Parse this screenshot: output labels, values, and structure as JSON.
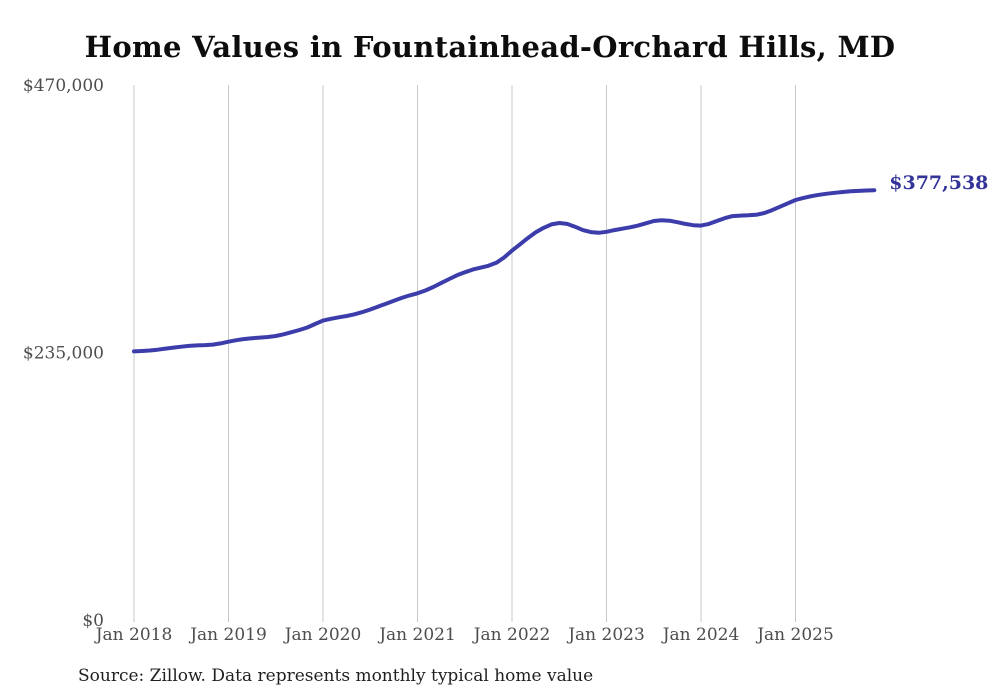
{
  "page": {
    "title": "Home Values in Fountainhead-Orchard Hills, MD",
    "source_note": "Source: Zillow. Data represents monthly typical home value",
    "end_value_label": "$377,538"
  },
  "colors": {
    "line": "#3c3caa",
    "end_label": "#333399",
    "gridline": "#c9c9c9",
    "tick_text": "#4d4d4d",
    "title_text": "#0d0d0d",
    "source_text": "#1f1f1f",
    "background": "#ffffff"
  },
  "chart_data": {
    "type": "line",
    "title": "Home Values in Fountainhead-Orchard Hills, MD",
    "xlabel": "",
    "ylabel": "",
    "ylim": [
      0,
      470000
    ],
    "grid": "vertical yearly gridlines only",
    "legend": "none",
    "series_name": "Monthly typical home value",
    "y_ticks": [
      0,
      235000,
      470000
    ],
    "y_tick_labels": [
      "$0",
      "$235,000",
      "$470,000"
    ],
    "x_tick_labels": [
      "Jan 2018",
      "Jan 2019",
      "Jan 2020",
      "Jan 2021",
      "Jan 2022",
      "Jan 2023",
      "Jan 2024",
      "Jan 2025"
    ],
    "end_value": 377538,
    "end_label": "$377,538",
    "x": [
      "Jan 2018",
      "Feb 2018",
      "Mar 2018",
      "Apr 2018",
      "May 2018",
      "Jun 2018",
      "Jul 2018",
      "Aug 2018",
      "Sep 2018",
      "Oct 2018",
      "Nov 2018",
      "Dec 2018",
      "Jan 2019",
      "Feb 2019",
      "Mar 2019",
      "Apr 2019",
      "May 2019",
      "Jun 2019",
      "Jul 2019",
      "Aug 2019",
      "Sep 2019",
      "Oct 2019",
      "Nov 2019",
      "Dec 2019",
      "Jan 2020",
      "Feb 2020",
      "Mar 2020",
      "Apr 2020",
      "May 2020",
      "Jun 2020",
      "Jul 2020",
      "Aug 2020",
      "Sep 2020",
      "Oct 2020",
      "Nov 2020",
      "Dec 2020",
      "Jan 2021",
      "Feb 2021",
      "Mar 2021",
      "Apr 2021",
      "May 2021",
      "Jun 2021",
      "Jul 2021",
      "Aug 2021",
      "Sep 2021",
      "Oct 2021",
      "Nov 2021",
      "Dec 2021",
      "Jan 2022",
      "Feb 2022",
      "Mar 2022",
      "Apr 2022",
      "May 2022",
      "Jun 2022",
      "Jul 2022",
      "Aug 2022",
      "Sep 2022",
      "Oct 2022",
      "Nov 2022",
      "Dec 2022",
      "Jan 2023",
      "Feb 2023",
      "Mar 2023",
      "Apr 2023",
      "May 2023",
      "Jun 2023",
      "Jul 2023",
      "Aug 2023",
      "Sep 2023",
      "Oct 2023",
      "Nov 2023",
      "Dec 2023",
      "Jan 2024",
      "Feb 2024",
      "Mar 2024",
      "Apr 2024",
      "May 2024",
      "Jun 2024",
      "Jul 2024",
      "Aug 2024",
      "Sep 2024",
      "Oct 2024",
      "Nov 2024",
      "Dec 2024",
      "Jan 2025",
      "Feb 2025",
      "Mar 2025",
      "Apr 2025",
      "May 2025",
      "Jun 2025",
      "Jul 2025",
      "Aug 2025",
      "Sep 2025",
      "Oct 2025",
      "Nov 2025"
    ],
    "values": [
      236000,
      236300,
      236800,
      237500,
      238400,
      239300,
      240100,
      240800,
      241200,
      241500,
      241900,
      243000,
      244500,
      245800,
      246900,
      247600,
      248100,
      248600,
      249500,
      251000,
      252800,
      254800,
      257000,
      260000,
      263000,
      264600,
      265900,
      267100,
      268600,
      270500,
      272800,
      275300,
      277900,
      280500,
      283000,
      285200,
      287000,
      289500,
      292500,
      296000,
      299500,
      302800,
      305500,
      307800,
      309500,
      311200,
      313800,
      318500,
      324500,
      330000,
      335500,
      340500,
      344500,
      347500,
      348800,
      348000,
      345500,
      342500,
      340800,
      340200,
      341000,
      342500,
      343800,
      345000,
      346500,
      348500,
      350500,
      351200,
      350800,
      349500,
      348000,
      346800,
      346500,
      348000,
      350500,
      353000,
      354800,
      355300,
      355500,
      356000,
      357500,
      360000,
      363000,
      366000,
      369000,
      370800,
      372300,
      373500,
      374500,
      375300,
      376000,
      376600,
      377000,
      377300,
      377538
    ]
  }
}
